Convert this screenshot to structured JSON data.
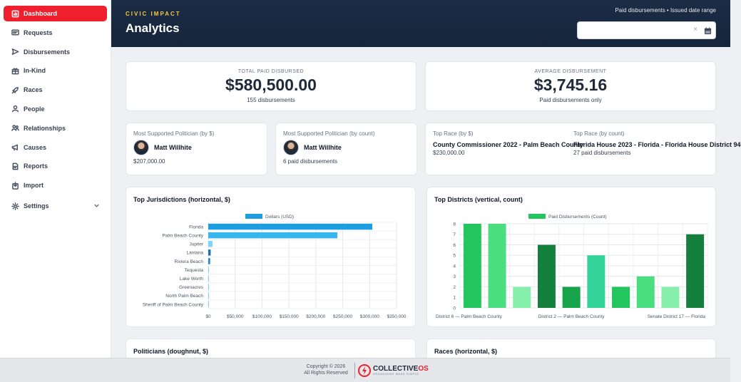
{
  "sidebar": {
    "items": [
      {
        "label": "Dashboard",
        "icon": "dashboard-icon",
        "active": true
      },
      {
        "label": "Requests",
        "icon": "requests-icon"
      },
      {
        "label": "Disbursements",
        "icon": "send-icon"
      },
      {
        "label": "In-Kind",
        "icon": "gift-icon"
      },
      {
        "label": "Races",
        "icon": "rocket-icon"
      },
      {
        "label": "People",
        "icon": "person-icon"
      },
      {
        "label": "Relationships",
        "icon": "relationships-icon"
      },
      {
        "label": "Causes",
        "icon": "megaphone-icon"
      },
      {
        "label": "Reports",
        "icon": "report-icon"
      },
      {
        "label": "Import",
        "icon": "import-icon"
      },
      {
        "label": "Settings",
        "icon": "gear-icon",
        "has_chevron": true
      }
    ],
    "active_color": "#ef1f2e"
  },
  "header": {
    "kicker": "CIVIC IMPACT",
    "title": "Analytics",
    "filter_label": "Paid disbursements • Issued date range",
    "date_value": "",
    "clear_symbol": "×",
    "kicker_color": "#f6c744",
    "background": "#1b2c45"
  },
  "stats": {
    "total": {
      "label": "TOTAL PAID DISBURSED",
      "value": "$580,500.00",
      "sub": "155 disbursements"
    },
    "average": {
      "label": "AVERAGE DISBURSEMENT",
      "value": "$3,745.16",
      "sub": "Paid disbursements only"
    }
  },
  "top_politician_dollars": {
    "label": "Most Supported Politician (by $)",
    "name": "Matt Willhite",
    "sub": "$207,000.00"
  },
  "top_politician_count": {
    "label": "Most Supported Politician (by count)",
    "name": "Matt Willhite",
    "sub": "6 paid disbursements"
  },
  "top_race_dollars": {
    "label": "Top Race (by $)",
    "name": "County Commissioner 2022 - Palm Beach County",
    "sub": "$230,000.00"
  },
  "top_race_count": {
    "label": "Top Race (by count)",
    "name": "Florida House 2023 - Florida - Florida House District 94",
    "sub": "27 paid disbursements"
  },
  "charts": {
    "jurisdictions_title": "Top Jurisdictions (horizontal, $)",
    "districts_title": "Top Districts (vertical, count)",
    "politicians_title": "Politicians (doughnut, $)",
    "races_title": "Races (horizontal, $)"
  },
  "chart_data": [
    {
      "type": "bar",
      "orientation": "horizontal",
      "title": "Top Jurisdictions (horizontal, $)",
      "categories": [
        "Florida",
        "Palm Beach County",
        "Jupiter",
        "Lantana",
        "Riviera Beach",
        "Tequesta",
        "Lake Worth",
        "Greenacres",
        "North Palm Beach",
        "Sheriff of Palm Beach County"
      ],
      "series": [
        {
          "name": "Dollars (USD)",
          "values": [
            305000,
            240000,
            8000,
            4500,
            3500,
            1000,
            800,
            600,
            500,
            400
          ]
        }
      ],
      "xlim": [
        0,
        350000
      ],
      "x_ticks": [
        "$0",
        "$50,000",
        "$100,000",
        "$150,000",
        "$200,000",
        "$250,000",
        "$300,000",
        "$350,000"
      ],
      "bar_colors": [
        "#1e9ee0",
        "#38b6ee",
        "#7dd3fc",
        "#1d6fa8",
        "#1e88c9",
        "#7dd3fc",
        "#7dd3fc",
        "#7dd3fc",
        "#7dd3fc",
        "#7dd3fc"
      ],
      "legend": "top-center",
      "grid": true
    },
    {
      "type": "bar",
      "orientation": "vertical",
      "title": "Top Districts (vertical, count)",
      "categories": [
        "District 6 — Palm Beach County",
        "",
        "",
        "",
        "District 2 — Palm Beach County",
        "",
        "",
        "",
        "",
        "Senate District 17 — Florida"
      ],
      "series": [
        {
          "name": "Paid Disbursements (Count)",
          "values": [
            8,
            8,
            2,
            6,
            2,
            5,
            2,
            3,
            2,
            7
          ]
        }
      ],
      "ylim": [
        0,
        8
      ],
      "y_ticks": [
        "0",
        "1",
        "2",
        "3",
        "4",
        "5",
        "6",
        "7",
        "8"
      ],
      "bar_colors": [
        "#22c55e",
        "#4ade80",
        "#86efac",
        "#15803d",
        "#16a34a",
        "#34d399",
        "#22c55e",
        "#4ade80",
        "#86efac",
        "#15803d"
      ],
      "legend": "top-center",
      "grid": true
    }
  ],
  "footer": {
    "copyright_line1": "Copyright © 2026",
    "copyright_line2": "All Rights Reserved",
    "brand": "COLLECTIVE",
    "brand_suffix": "OS",
    "tagline": "ORGANIZING MADE SIMPLE"
  }
}
